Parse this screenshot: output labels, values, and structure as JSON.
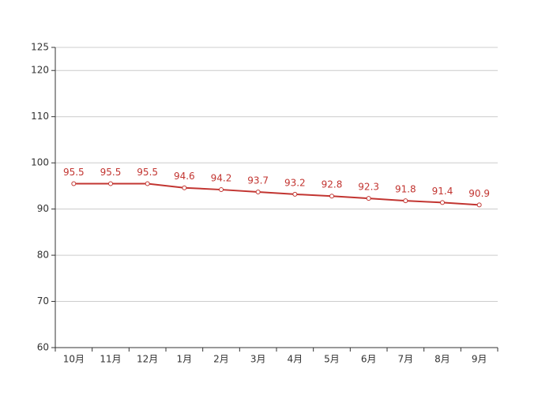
{
  "chart_data": {
    "type": "line",
    "categories": [
      "10月",
      "11月",
      "12月",
      "1月",
      "2月",
      "3月",
      "4月",
      "5月",
      "6月",
      "7月",
      "8月",
      "9月"
    ],
    "values": [
      95.5,
      95.5,
      95.5,
      94.6,
      94.2,
      93.7,
      93.2,
      92.8,
      92.3,
      91.8,
      91.4,
      90.9
    ],
    "color": "#c23531",
    "ylim": [
      60,
      125
    ],
    "yticks": [
      60,
      70,
      80,
      90,
      100,
      110,
      120,
      125
    ],
    "grid": true
  }
}
